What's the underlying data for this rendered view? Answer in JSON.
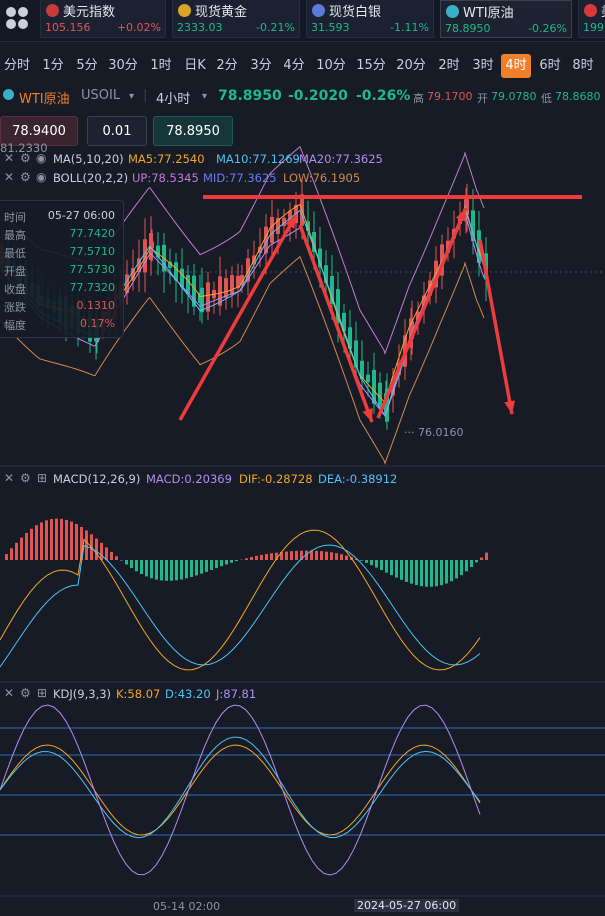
{
  "tickers": [
    {
      "name": "美元指数",
      "price": "105.156",
      "change": "+0.02%",
      "flag_color": "#c33b3b"
    },
    {
      "name": "现货黄金",
      "price": "2333.03",
      "change": "-0.21%",
      "flag_color": "#d9a323"
    },
    {
      "name": "现货白银",
      "price": "31.593",
      "change": "-1.11%",
      "flag_color": "#5b7bd6"
    },
    {
      "name": "WTI原油",
      "price": "78.8950",
      "change": "-0.26%",
      "flag_color": "#3ab0c7"
    },
    {
      "name": "美",
      "price": "199",
      "change": "",
      "flag_color": "#d83a3a"
    }
  ],
  "timeframes": [
    "分时",
    "1分",
    "5分",
    "30分",
    "1时",
    "日K",
    "2分",
    "3分",
    "4分",
    "10分",
    "15分",
    "20分",
    "2时",
    "3时",
    "4时",
    "6时",
    "8时"
  ],
  "active_timeframe": "4时",
  "symbol": {
    "name": "WTI原油",
    "code": "USOIL",
    "period": "4小时",
    "price": "78.8950",
    "change": "-0.2020",
    "change_pct": "-0.26%",
    "high_label": "高",
    "high": "79.1700",
    "open_label": "开",
    "open": "79.0780",
    "low_label": "低",
    "low": "78.8680"
  },
  "trade": {
    "sell_price": "78.9400",
    "lot": "0.01",
    "buy_price": "78.8950"
  },
  "ma_label": "MA(5,10,20)",
  "ma5": "MA5:77.2540",
  "ma10": "MA10:77.1269",
  "ma20": "MA20:77.3625",
  "boll_label": "BOLL(20,2,2)",
  "boll_up": "UP:78.5345",
  "boll_mid": "MID:77.3625",
  "boll_low": "LOW:76.1905",
  "left_axis_value": "81.2330",
  "info": {
    "rows": [
      {
        "label": "时间",
        "value": "05-27 06:00"
      },
      {
        "label": "最高",
        "value": "77.7420"
      },
      {
        "label": "最低",
        "value": "77.5710"
      },
      {
        "label": "开盘",
        "value": "77.5730"
      },
      {
        "label": "收盘",
        "value": "77.7320"
      },
      {
        "label": "涨跌",
        "value": "0.1310"
      },
      {
        "label": "幅度",
        "value": "0.17%"
      }
    ]
  },
  "low_marker": "76.0160",
  "macd_label": "MACD(12,26,9)",
  "macd_val": "MACD:0.20369",
  "macd_dif": "DIF:-0.28728",
  "macd_dea": "DEA:-0.38912",
  "kdj_label": "KDJ(9,3,3)",
  "kdj_k": "K:58.07",
  "kdj_d": "D:43.20",
  "kdj_j": "J:87.81",
  "date_left": "05-14 02:00",
  "date_right": "2024-05-27 06:00",
  "colors": {
    "up": "#e05454",
    "down": "#1eb88a",
    "accent": "#f07f2a",
    "ma5": "#f5a623",
    "ma10": "#4fc3f7",
    "ma20": "#b48cf2",
    "boll_up": "#c47ad6",
    "boll_mid": "#6a7bf5",
    "boll_low": "#d4884a",
    "kdj_k": "#f5a623",
    "kdj_d": "#4fc3f7",
    "kdj_j": "#b48cf2"
  }
}
